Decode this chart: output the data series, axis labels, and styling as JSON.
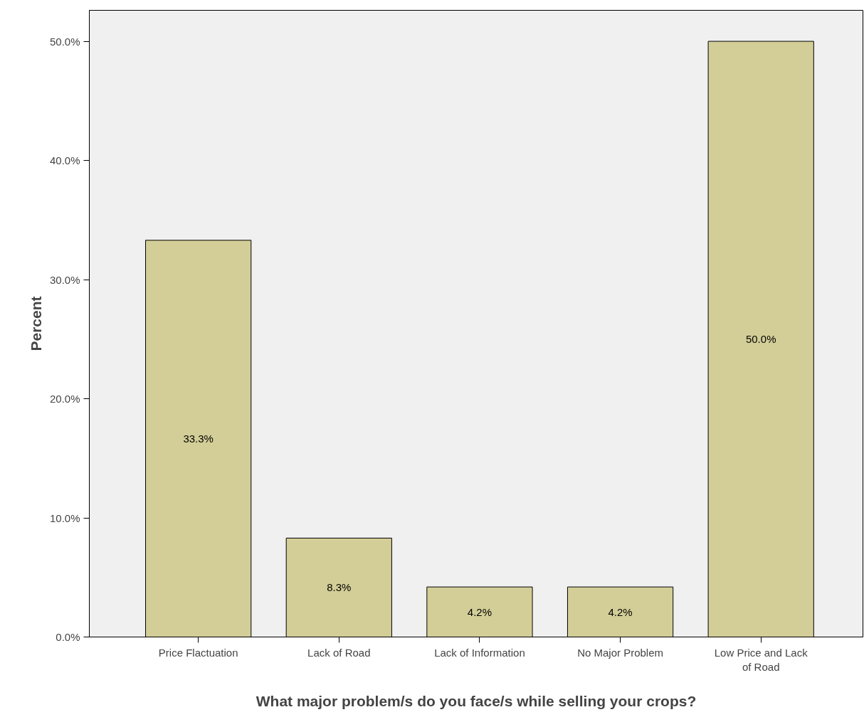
{
  "chart_data": {
    "type": "bar",
    "xlabel": "What major problem/s do you face/s while selling your crops?",
    "ylabel": "Percent",
    "categories": [
      "Price Flactuation",
      "Lack of Road",
      "Lack of Information",
      "No Major Problem",
      "Low Price and Lack of Road"
    ],
    "values": [
      33.3,
      8.3,
      4.2,
      4.2,
      50.0
    ],
    "value_labels": [
      "33.3%",
      "8.3%",
      "4.2%",
      "4.2%",
      "50.0%"
    ],
    "color": "#d3ce97",
    "ylim": [
      0,
      52.6
    ],
    "yticks": [
      {
        "value": 0,
        "label": "0.0%"
      },
      {
        "value": 10,
        "label": "10.0%"
      },
      {
        "value": 20,
        "label": "20.0%"
      },
      {
        "value": 30,
        "label": "30.0%"
      },
      {
        "value": 40,
        "label": "40.0%"
      },
      {
        "value": 50,
        "label": "50.0%"
      }
    ],
    "grid": false
  }
}
